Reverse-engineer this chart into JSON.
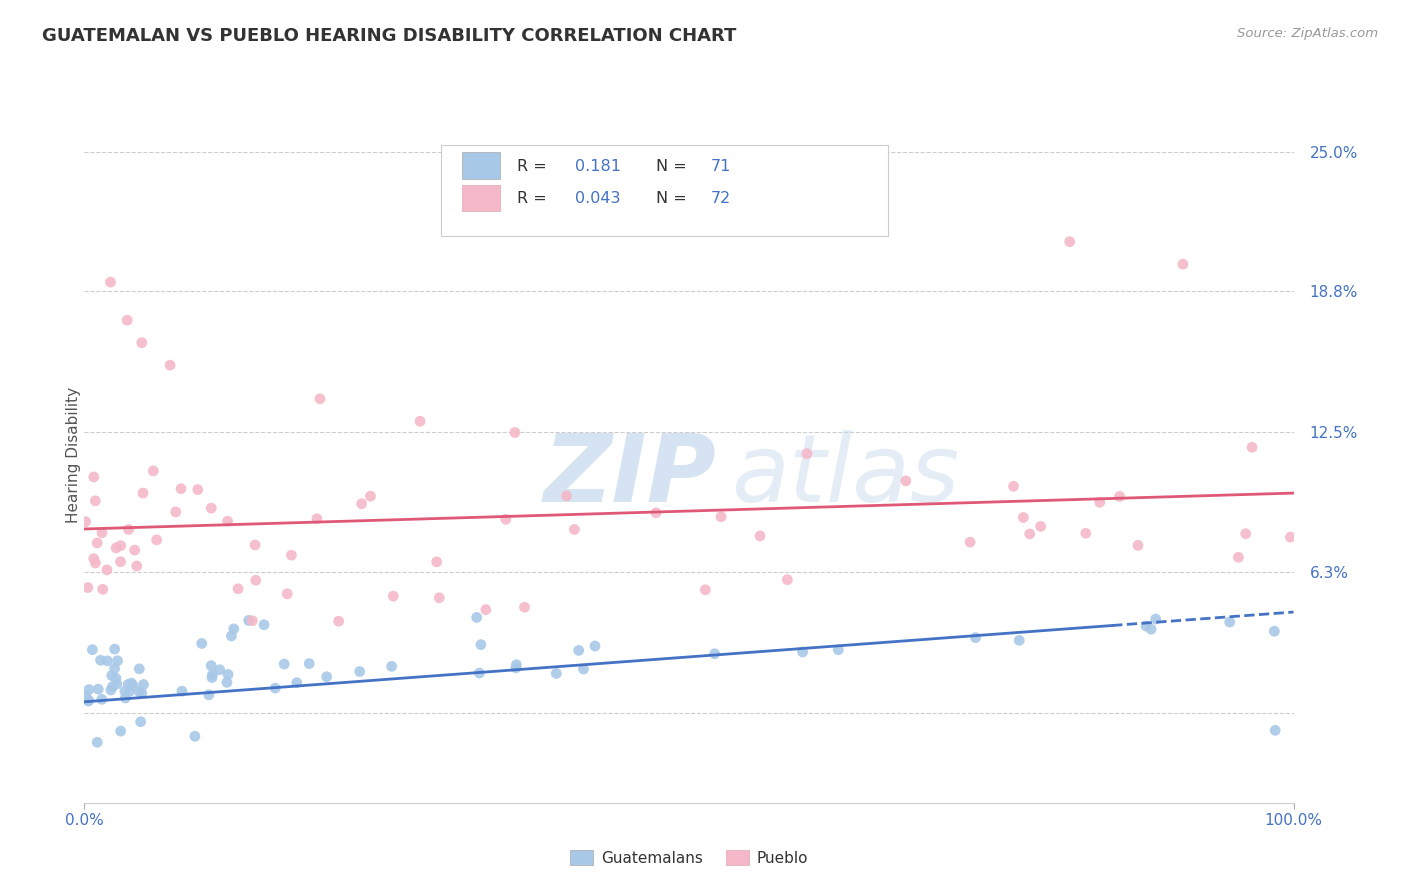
{
  "title": "GUATEMALAN VS PUEBLO HEARING DISABILITY CORRELATION CHART",
  "source": "Source: ZipAtlas.com",
  "ylabel": "Hearing Disability",
  "xlim": [
    0.0,
    100.0
  ],
  "ylim": [
    -4.0,
    27.0
  ],
  "ytick_vals": [
    0.0,
    6.3,
    12.5,
    18.8,
    25.0
  ],
  "ytick_labels": [
    "",
    "6.3%",
    "12.5%",
    "18.8%",
    "25.0%"
  ],
  "xtick_vals": [
    0,
    100
  ],
  "xtick_labels": [
    "0.0%",
    "100.0%"
  ],
  "blue_color": "#a8c8e8",
  "pink_color": "#f4b8c8",
  "blue_line_color": "#4472c4",
  "pink_line_color": "#e05878",
  "axis_label_color": "#4472c4",
  "R_blue": "0.181",
  "N_blue": "71",
  "R_pink": "0.043",
  "N_pink": "72",
  "legend_labels": [
    "Guatemalans",
    "Pueblo"
  ],
  "watermark_zip": "ZIP",
  "watermark_atlas": "atlas",
  "title_color": "#333333",
  "source_color": "#999999",
  "grid_color": "#cccccc",
  "background": "#ffffff"
}
